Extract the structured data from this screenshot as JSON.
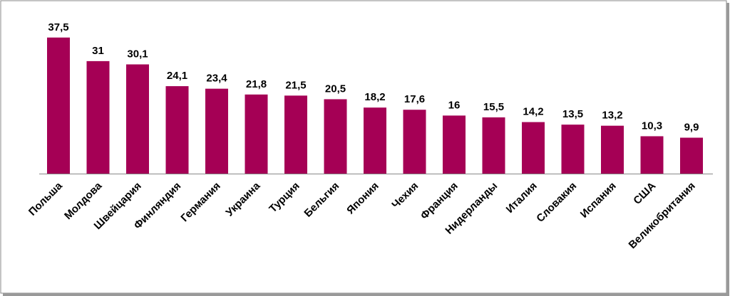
{
  "chart_data": {
    "type": "bar",
    "categories": [
      "Польша",
      "Молдова",
      "Швейцария",
      "Финляндия",
      "Германия",
      "Украина",
      "Турция",
      "Бельгия",
      "Япония",
      "Чехия",
      "Франция",
      "Нидерланды",
      "Италия",
      "Словакия",
      "Испания",
      "США",
      "Великобритания"
    ],
    "values": [
      37.5,
      31,
      30.1,
      24.1,
      23.4,
      21.8,
      21.5,
      20.5,
      18.2,
      17.6,
      16,
      15.5,
      14.2,
      13.5,
      13.2,
      10.3,
      9.9
    ],
    "value_labels": [
      "37,5",
      "31",
      "30,1",
      "24,1",
      "23,4",
      "21,8",
      "21,5",
      "20,5",
      "18,2",
      "17,6",
      "16",
      "15,5",
      "14,2",
      "13,5",
      "13,2",
      "10,3",
      "9,9"
    ],
    "color": "#a50055"
  }
}
